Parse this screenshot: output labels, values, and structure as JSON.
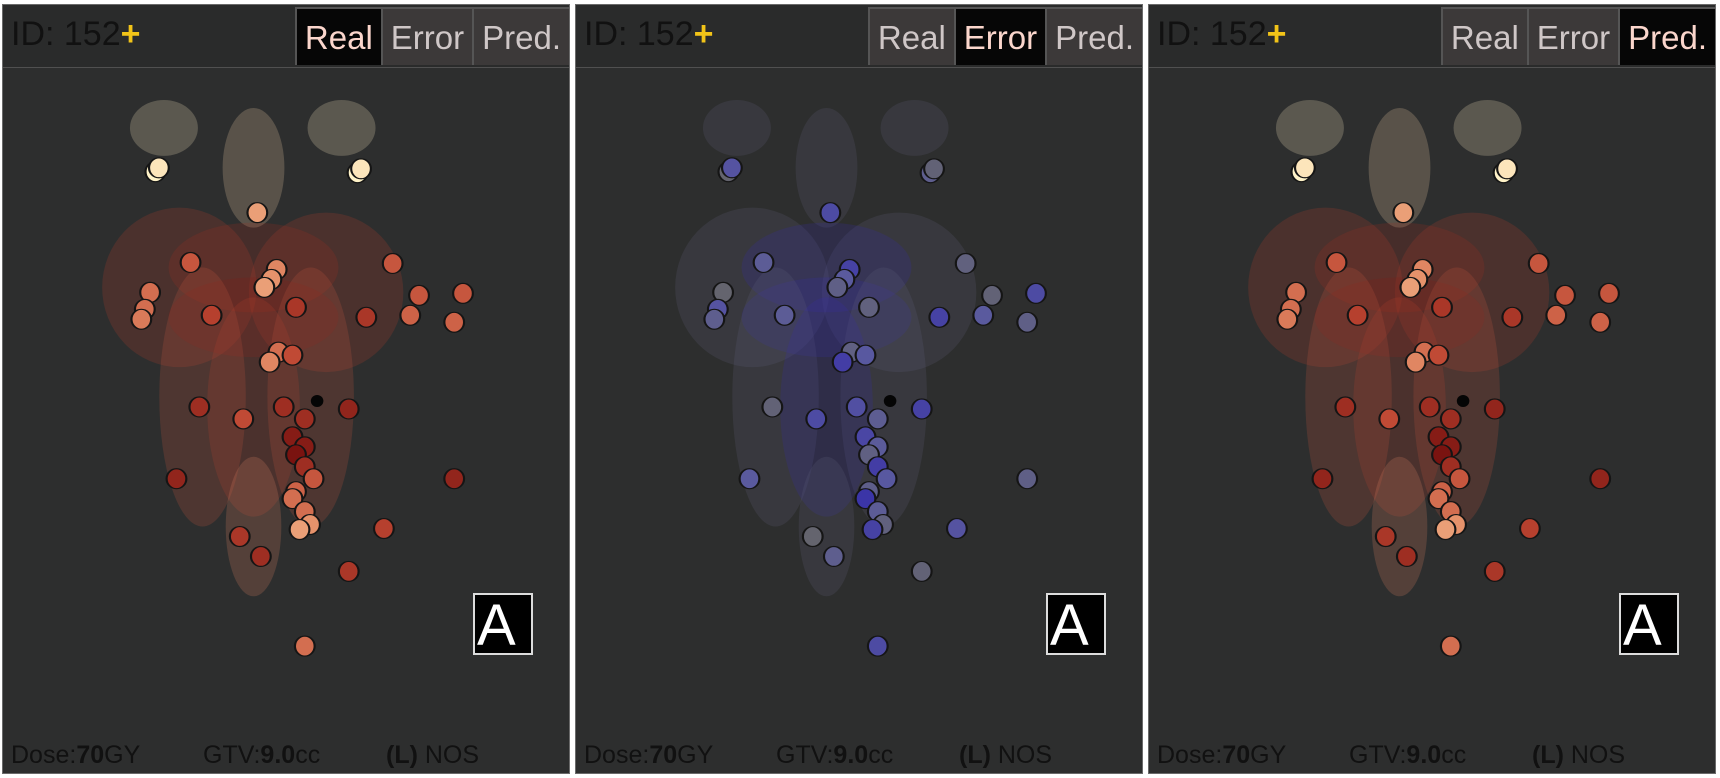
{
  "panels": [
    {
      "id_label": "ID: 152",
      "plus": "+",
      "tabs": [
        "Real",
        "Error",
        "Pred."
      ],
      "active_tab": 0,
      "mode": "dose",
      "dose_label": "Dose:",
      "dose_value": "70",
      "dose_unit": "GY",
      "gtv_label": "GTV:",
      "gtv_value": "9.0",
      "gtv_unit": "cc",
      "side_label": "(L)",
      "site_label": "NOS",
      "orientation_label": "A"
    },
    {
      "id_label": "ID: 152",
      "plus": "+",
      "tabs": [
        "Real",
        "Error",
        "Pred."
      ],
      "active_tab": 1,
      "mode": "error",
      "dose_label": "Dose:",
      "dose_value": "70",
      "dose_unit": "GY",
      "gtv_label": "GTV:",
      "gtv_value": "9.0",
      "gtv_unit": "cc",
      "side_label": "(L)",
      "site_label": "NOS",
      "orientation_label": "A"
    },
    {
      "id_label": "ID: 152",
      "plus": "+",
      "tabs": [
        "Real",
        "Error",
        "Pred."
      ],
      "active_tab": 2,
      "mode": "dose",
      "dose_label": "Dose:",
      "dose_value": "70",
      "dose_unit": "GY",
      "gtv_label": "GTV:",
      "gtv_value": "9.0",
      "gtv_unit": "cc",
      "side_label": "(L)",
      "site_label": "NOS",
      "orientation_label": "A"
    }
  ],
  "colors": {
    "panel_bg": "#2d2e2e",
    "plus": "#f2c418",
    "active_tab_bg": "#060606",
    "dose_high": "#7a0d0d",
    "dose_low": "#fff3c8",
    "error_high": "#2a20a0",
    "error_low": "#6a6a78"
  }
}
